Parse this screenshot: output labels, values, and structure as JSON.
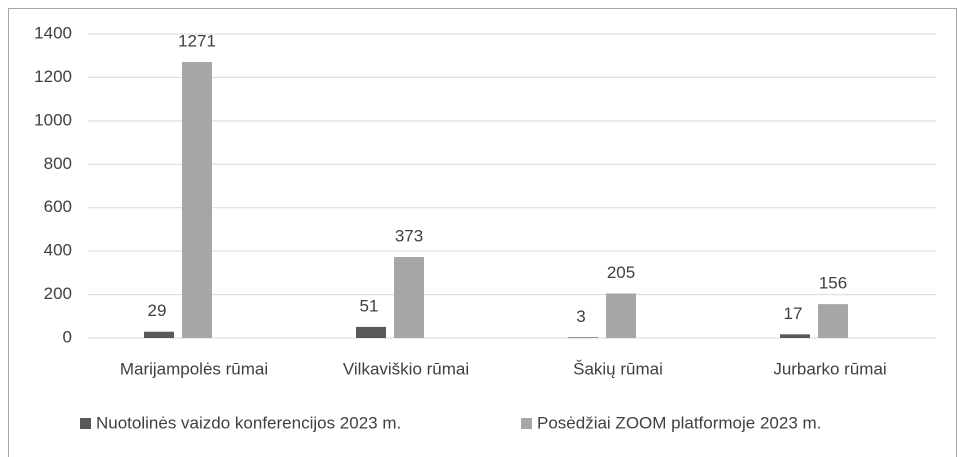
{
  "chart_data": {
    "type": "bar",
    "categories": [
      "Marijampolės rūmai",
      "Vilkaviškio rūmai",
      "Šakių rūmai",
      "Jurbarko rūmai"
    ],
    "series": [
      {
        "name": "Nuotolinės vaizdo konferencijos 2023 m.",
        "color": "#595959",
        "values": [
          29,
          51,
          3,
          17
        ]
      },
      {
        "name": "Posėdžiai ZOOM platformoje 2023 m.",
        "color": "#a6a6a6",
        "values": [
          1271,
          373,
          205,
          156
        ]
      }
    ],
    "ylim": [
      0,
      1400
    ],
    "yticks": [
      0,
      200,
      400,
      600,
      800,
      1000,
      1200,
      1400
    ],
    "grid": true,
    "legend": "bottom"
  }
}
